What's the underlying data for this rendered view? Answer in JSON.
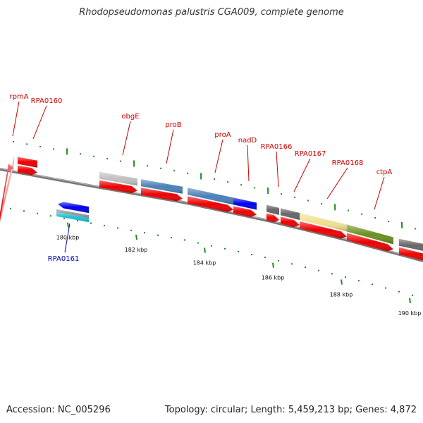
{
  "title": "Rhodopseudomonas palustris CGA009, complete genome",
  "footer": {
    "accession": "Accession: NC_005296",
    "summary": "Topology: circular; Length: 5,459,213 bp; Genes: 4,872"
  },
  "map": {
    "colors": {
      "backbone": "#777777",
      "cds": "#ee0000",
      "tick": "#228822",
      "label_forward": "#cc0000",
      "label_reverse": "#0000aa"
    },
    "ticks": [
      {
        "kbp": 180,
        "label": "180 kbp"
      },
      {
        "kbp": 182,
        "label": "182 kbp"
      },
      {
        "kbp": 184,
        "label": "184 kbp"
      },
      {
        "kbp": 186,
        "label": "186 kbp"
      },
      {
        "kbp": 188,
        "label": "188 kbp"
      },
      {
        "kbp": 190,
        "label": "190 kbp"
      }
    ],
    "genes": [
      {
        "name": "rpmA",
        "strand": "+",
        "color": "#f09090"
      },
      {
        "name": "RPA0160",
        "strand": "+",
        "color": "#ee0000"
      },
      {
        "name": "RPA0161",
        "strand": "-",
        "color": "#20c0d0"
      },
      {
        "name": "obgE",
        "strand": "+",
        "color": "#c0c0c0"
      },
      {
        "name": "proB",
        "strand": "+",
        "color": "#4a80b8"
      },
      {
        "name": "proA",
        "strand": "+",
        "color": "#4a80b8"
      },
      {
        "name": "nadD",
        "strand": "+",
        "color": "#0000ee"
      },
      {
        "name": "RPA0166",
        "strand": "+",
        "color": "#666666"
      },
      {
        "name": "RPA0167",
        "strand": "+",
        "color": "#666666"
      },
      {
        "name": "RPA0168",
        "strand": "+",
        "color": "#f0e090"
      },
      {
        "name": "ctpA",
        "strand": "+",
        "color": "#6a9020"
      }
    ]
  }
}
